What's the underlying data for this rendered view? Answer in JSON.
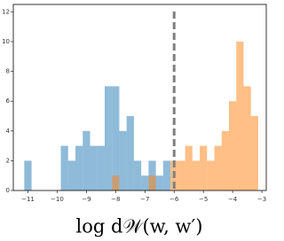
{
  "chart_data": {
    "type": "histogram",
    "xlabel": "log d𝒲(w, w′)",
    "bins": [
      -11.125,
      -10.875,
      -10.625,
      -10.375,
      -10.125,
      -9.875,
      -9.625,
      -9.375,
      -9.125,
      -8.875,
      -8.625,
      -8.375,
      -8.125,
      -7.875,
      -7.625,
      -7.375,
      -7.125,
      -6.875,
      -6.625,
      -6.375,
      -6.125,
      -5.875,
      -5.625,
      -5.375,
      -5.125,
      -4.875,
      -4.625,
      -4.375,
      -4.125,
      -3.875,
      -3.625,
      -3.375,
      -3.125
    ],
    "series": [
      {
        "color": "#1f77b4",
        "values": [
          2,
          0,
          0,
          0,
          0,
          3,
          2,
          3,
          4,
          3,
          3,
          7,
          7,
          4,
          5,
          2,
          1,
          2,
          1,
          2,
          0,
          0,
          0,
          0,
          0,
          0,
          0,
          0,
          0,
          0,
          0,
          0
        ]
      },
      {
        "color": "#ff7f0e",
        "values": [
          0,
          0,
          0,
          0,
          0,
          0,
          0,
          0,
          0,
          0,
          0,
          0,
          1,
          0,
          0,
          0,
          0,
          1,
          0,
          0,
          2,
          2,
          3,
          2,
          3,
          2,
          3,
          4,
          6,
          10,
          7,
          5
        ]
      }
    ],
    "opacity": 0.5,
    "vlines": [
      -6
    ],
    "vline_color": "#808080",
    "xlim": [
      -11.5,
      -2.85
    ],
    "ylim": [
      0,
      12.5
    ],
    "xticks": [
      {
        "value": -11,
        "label": "−11"
      },
      {
        "value": -10,
        "label": "−10"
      },
      {
        "value": -9,
        "label": "−9"
      },
      {
        "value": -8,
        "label": "−8"
      },
      {
        "value": -7,
        "label": "−7"
      },
      {
        "value": -6,
        "label": "−6"
      },
      {
        "value": -5,
        "label": "−5"
      },
      {
        "value": -4,
        "label": "−4"
      },
      {
        "value": -3,
        "label": "−3"
      }
    ],
    "yticks": [
      0,
      2,
      4,
      6,
      8,
      10,
      12
    ]
  }
}
